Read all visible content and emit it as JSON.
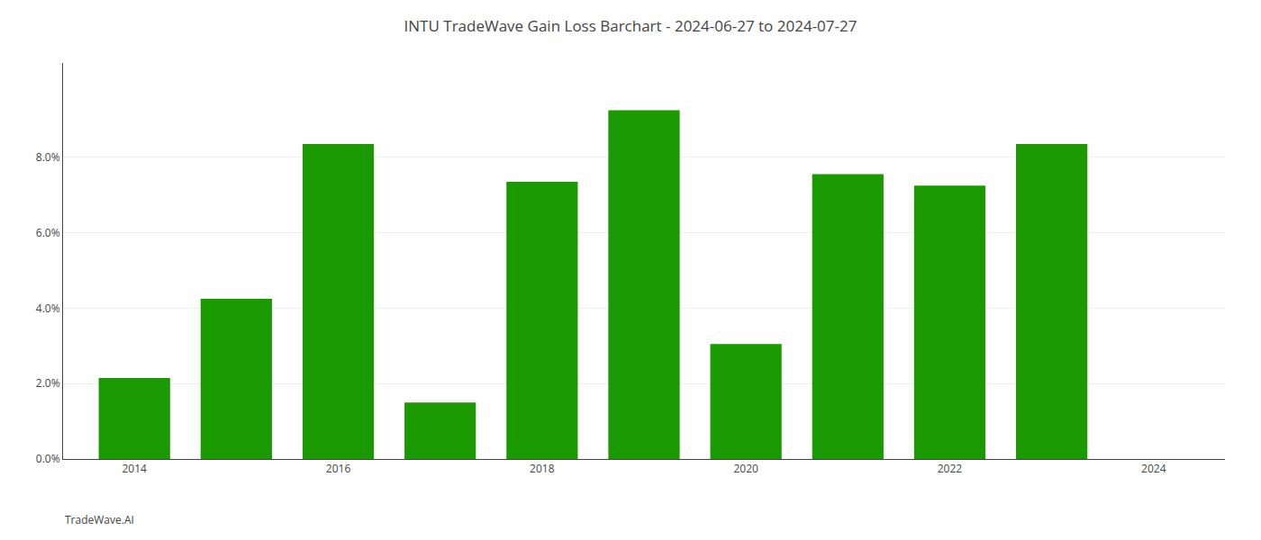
{
  "chart_data": {
    "type": "bar",
    "title": "INTU TradeWave Gain Loss Barchart - 2024-06-27 to 2024-07-27",
    "annotations": [
      {
        "text": "TradeWave.AI"
      }
    ],
    "x": [
      2014,
      2015,
      2016,
      2017,
      2018,
      2019,
      2020,
      2021,
      2022,
      2023
    ],
    "values": [
      0.0215,
      0.0425,
      0.0835,
      0.015,
      0.0735,
      0.0925,
      0.0305,
      0.0755,
      0.0725,
      0.0835
    ],
    "color": "#1a9900",
    "xlim": [
      2013.3,
      2024.7
    ],
    "xticks": [
      2014,
      2016,
      2018,
      2020,
      2022,
      2024
    ],
    "ylim": [
      0,
      0.105
    ],
    "yticks": [
      {
        "value": 0,
        "label": "0.0%"
      },
      {
        "value": 0.02,
        "label": "2.0%"
      },
      {
        "value": 0.04,
        "label": "4.0%"
      },
      {
        "value": 0.06,
        "label": "6.0%"
      },
      {
        "value": 0.08,
        "label": "8.0%"
      }
    ],
    "grid": true
  }
}
